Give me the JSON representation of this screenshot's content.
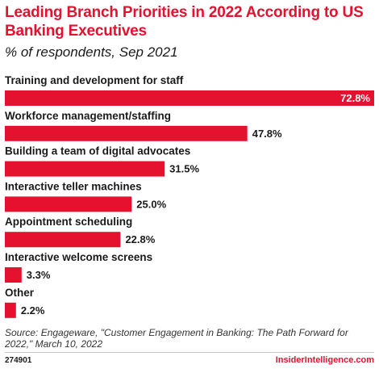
{
  "header": {
    "title": "Leading Branch Priorities in 2022 According to US Banking Executives",
    "subtitle": "% of respondents, Sep 2021"
  },
  "chart_data": {
    "type": "bar",
    "orientation": "horizontal",
    "title": "Leading Branch Priorities in 2022 According to US Banking Executives",
    "subtitle": "% of respondents, Sep 2021",
    "xlabel": "",
    "ylabel": "",
    "categories": [
      "Training and development for staff",
      "Workforce management/staffing",
      "Building a team of digital advocates",
      "Interactive teller machines",
      "Appointment scheduling",
      "Interactive welcome screens",
      "Other"
    ],
    "values": [
      72.8,
      47.8,
      31.5,
      25.0,
      22.8,
      3.3,
      2.2
    ],
    "value_labels": [
      "72.8%",
      "47.8%",
      "31.5%",
      "25.0%",
      "22.8%",
      "3.3%",
      "2.2%"
    ],
    "xlim": [
      0,
      72.8
    ],
    "grid": false,
    "legend": "none",
    "bar_color": "#e4112f"
  },
  "footer": {
    "source": "Source: Engageware, \"Customer Engagement in Banking: The Path Forward for 2022,\" March 10, 2022",
    "chart_id": "274901",
    "brand": "InsiderIntelligence.com"
  },
  "colors": {
    "accent": "#e4112f",
    "text": "#1a1a1a"
  }
}
